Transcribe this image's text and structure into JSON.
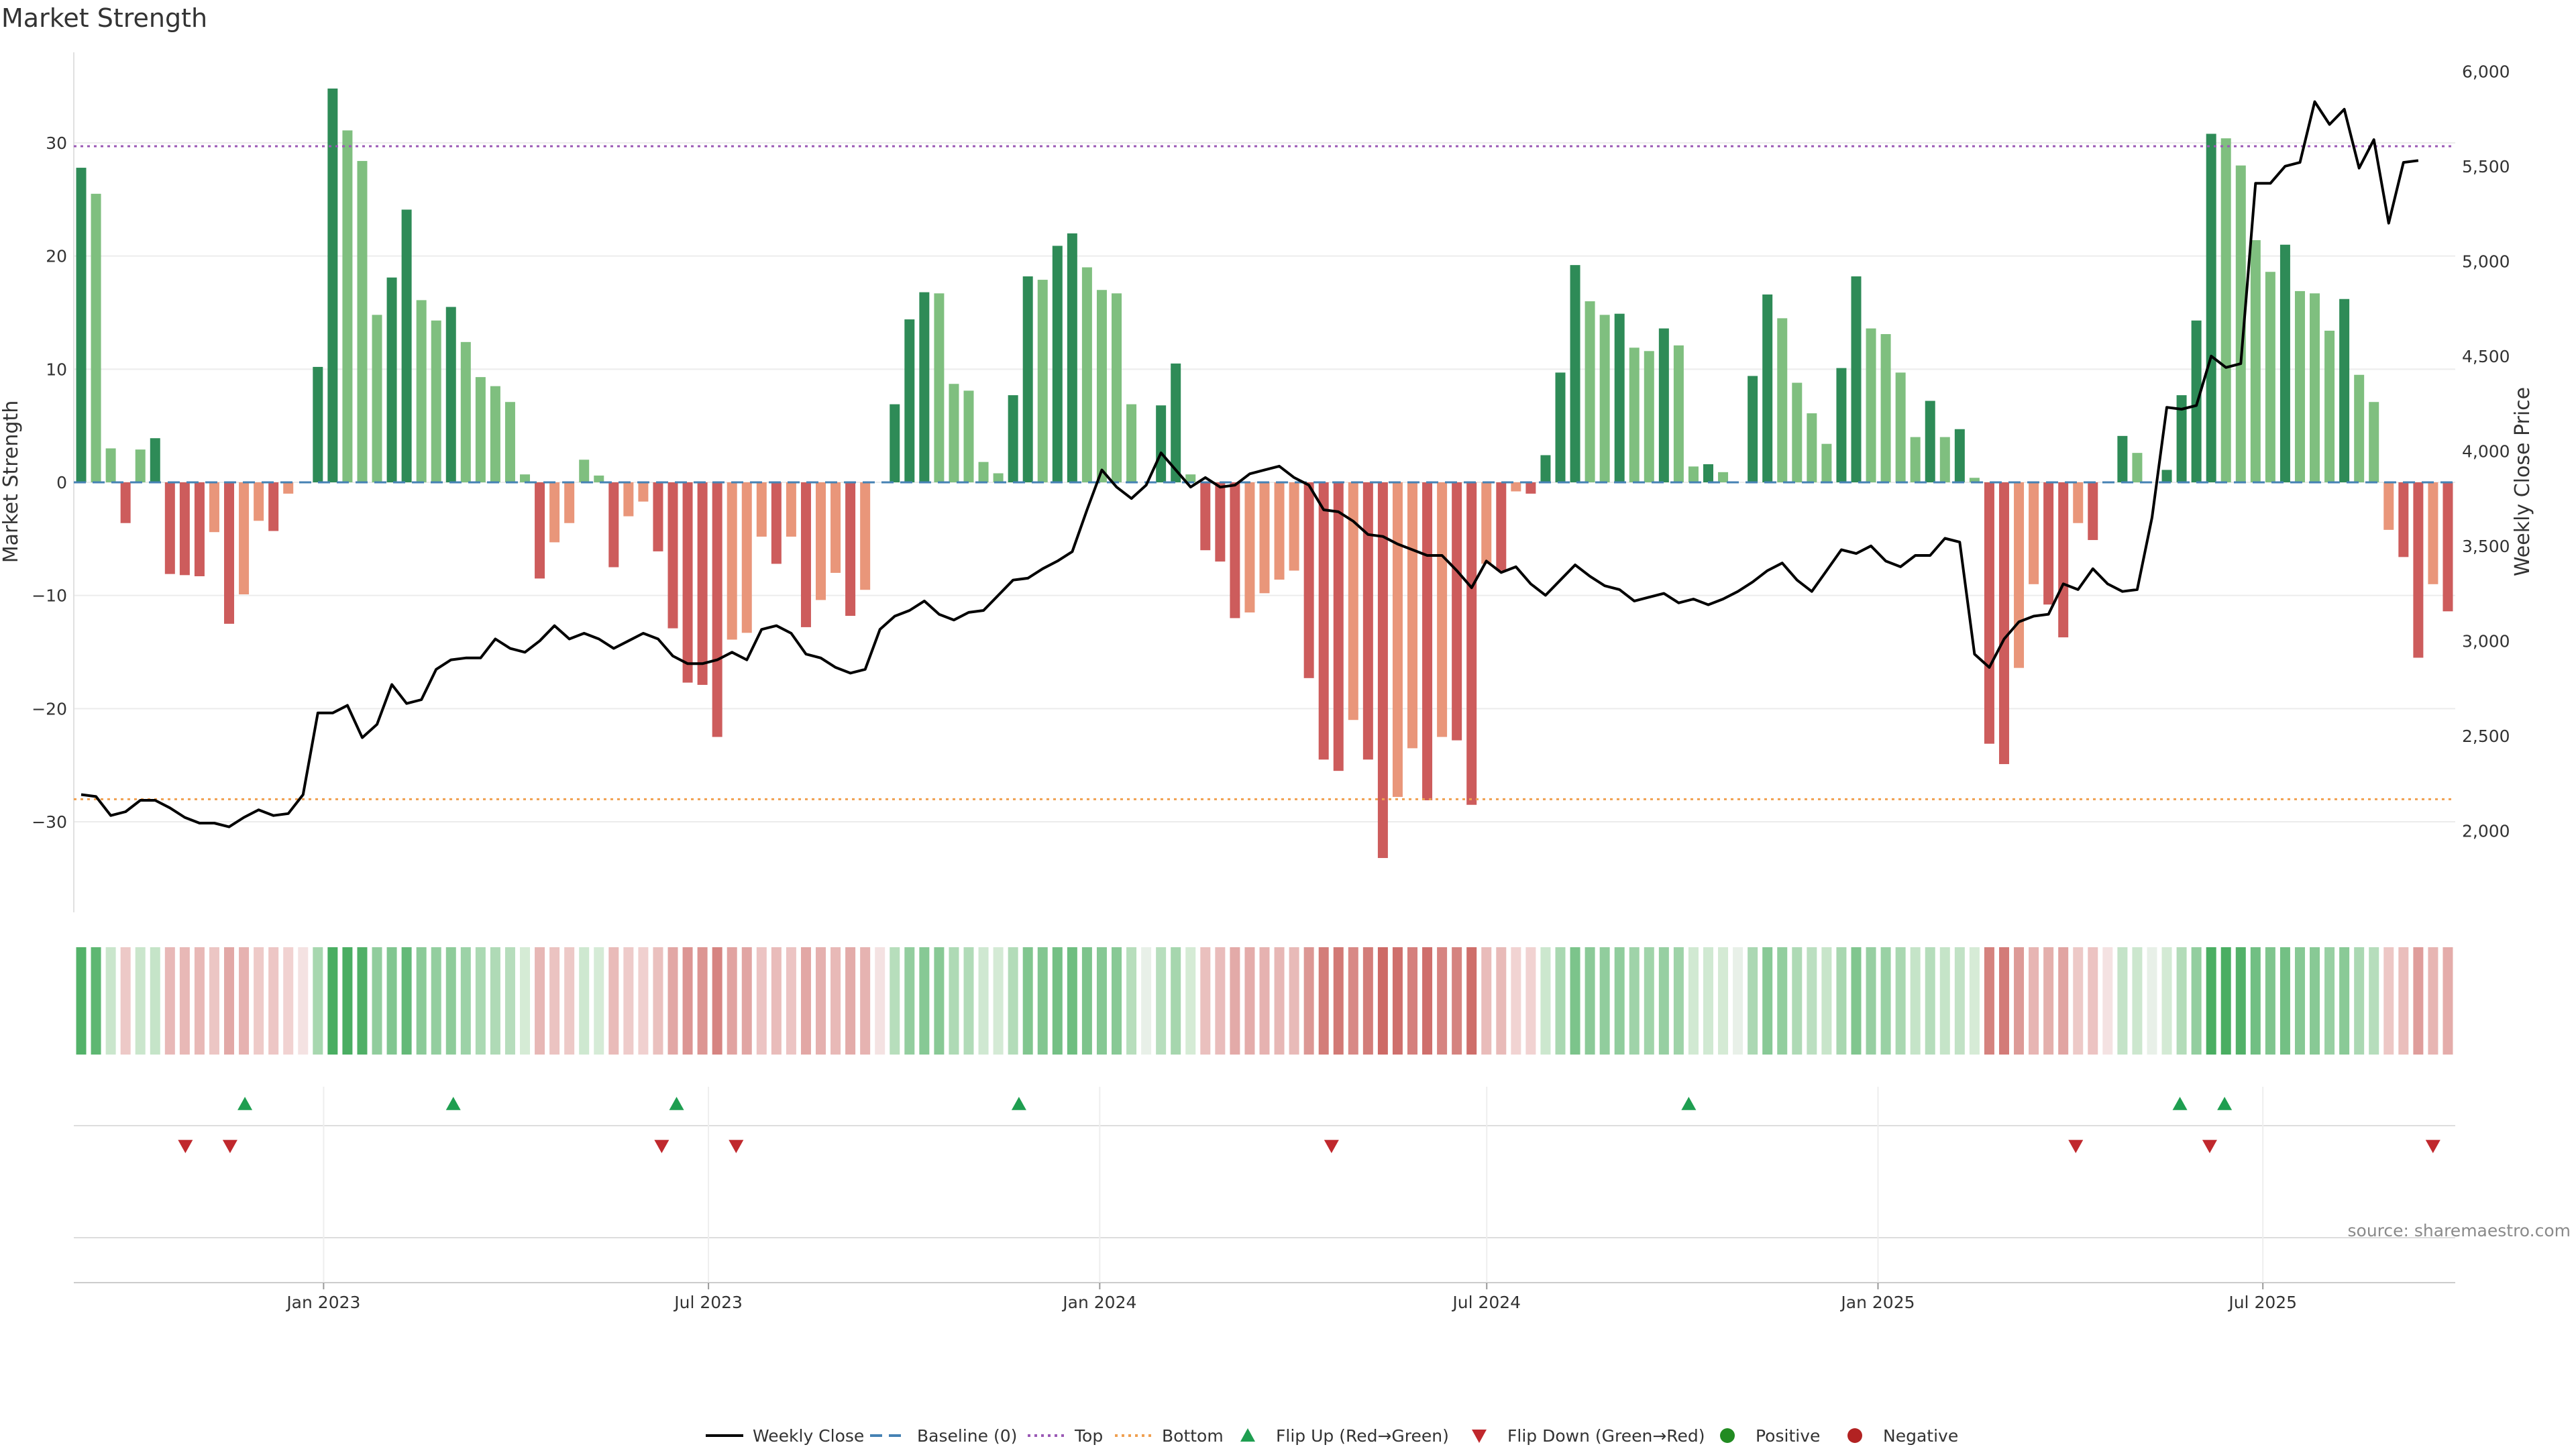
{
  "chart_data": {
    "type": "bar",
    "title": "Market Strength",
    "ylabel": "Market Strength",
    "y2label": "Weekly Close Price",
    "source": "source: sharemaestro.com",
    "ylim": [
      -38,
      38
    ],
    "y2lim": [
      1570,
      6100
    ],
    "yticks": [
      -30,
      -20,
      -10,
      0,
      10,
      20,
      30
    ],
    "y2ticks": [
      2000,
      2500,
      3000,
      3500,
      4000,
      4500,
      5000,
      5500,
      6000
    ],
    "y2tick_labels": [
      "2,000",
      "2,500",
      "3,000",
      "3,500",
      "4,000",
      "4,500",
      "5,000",
      "5,500",
      "6,000"
    ],
    "x_start": "2022-09-09",
    "x_end": "2025-09-26",
    "x_ticks": [
      {
        "label": "Jan 2023",
        "date": "2023-01-01"
      },
      {
        "label": "Jul 2023",
        "date": "2023-07-01"
      },
      {
        "label": "Jan 2024",
        "date": "2024-01-01"
      },
      {
        "label": "Jul 2024",
        "date": "2024-07-01"
      },
      {
        "label": "Jan 2025",
        "date": "2025-01-01"
      },
      {
        "label": "Jul 2025",
        "date": "2025-07-01"
      }
    ],
    "top_level": 29.7,
    "bottom_level": -28,
    "colors": {
      "strong_green": "#2e8b57",
      "light_green": "#7fbf7f",
      "strong_red": "#cd5c5c",
      "light_red": "#e9967a",
      "price_line": "#000000",
      "baseline": "#4682b4",
      "top": "#9b59b6",
      "bottom": "#f0a050",
      "flip_up": "#1e9e50",
      "flip_down": "#c0282d",
      "positive": "#228b22",
      "negative": "#b22222"
    },
    "series": [
      {
        "name": "Market Strength",
        "values": [
          27.8,
          25.5,
          3,
          -3.6,
          2.9,
          3.9,
          -8.1,
          -8.2,
          -8.3,
          -4.4,
          -12.5,
          -9.9,
          -3.4,
          -4.3,
          -1,
          0,
          10.2,
          34.8,
          31.1,
          28.4,
          14.8,
          18.1,
          24.1,
          16.1,
          14.3,
          15.5,
          12.4,
          9.3,
          8.5,
          7.1,
          0.7,
          -8.5,
          -5.3,
          -3.6,
          2,
          0.6,
          -7.5,
          -3,
          -1.7,
          -6.1,
          -12.9,
          -17.7,
          -17.9,
          -22.5,
          -13.9,
          -13.3,
          -4.8,
          -7.2,
          -4.8,
          -12.8,
          -10.4,
          -8,
          -11.8,
          -9.5,
          0,
          6.9,
          14.4,
          16.8,
          16.7,
          8.7,
          8.1,
          1.8,
          0.8,
          7.7,
          18.2,
          17.9,
          20.9,
          22,
          19,
          17,
          16.7,
          6.9,
          0,
          6.8,
          10.5,
          0.7,
          -6,
          -7,
          -12,
          -11.5,
          -9.8,
          -8.6,
          -7.8,
          -17.3,
          -24.5,
          -25.5,
          -21,
          -24.5,
          -33.2,
          -27.8,
          -23.5,
          -28.1,
          -22.5,
          -22.8,
          -28.5,
          -7.2,
          -7.8,
          -0.8,
          -1,
          2.4,
          9.7,
          19.2,
          16,
          14.8,
          14.9,
          11.9,
          11.6,
          13.6,
          12.1,
          1.4,
          1.6,
          0.9,
          0,
          9.4,
          16.6,
          14.5,
          8.8,
          6.1,
          3.4,
          10.1,
          18.2,
          13.6,
          13.1,
          9.7,
          4,
          7.2,
          4,
          4.7,
          0.4,
          -23.1,
          -24.9,
          -16.4,
          -9,
          -10.8,
          -13.7,
          -3.6,
          -5.1,
          0,
          4.1,
          2.6,
          0,
          1.1,
          7.7,
          14.3,
          30.8,
          30.4,
          28,
          21.4,
          18.6,
          21,
          16.9,
          16.7,
          13.4,
          16.2,
          9.5,
          7.1,
          -4.2,
          -6.6,
          -15.5,
          -9,
          -11.4
        ]
      },
      {
        "name": "Weekly Close",
        "values": [
          2190,
          2180,
          2080,
          2100,
          2160,
          2160,
          2120,
          2070,
          2040,
          2040,
          2020,
          2070,
          2110,
          2080,
          2090,
          2190,
          2620,
          2620,
          2660,
          2490,
          2560,
          2770,
          2670,
          2690,
          2850,
          2900,
          2910,
          2910,
          3010,
          2960,
          2940,
          3000,
          3080,
          3010,
          3040,
          3010,
          2960,
          3000,
          3040,
          3010,
          2920,
          2880,
          2880,
          2900,
          2940,
          2900,
          3060,
          3080,
          3040,
          2930,
          2910,
          2860,
          2830,
          2850,
          3060,
          3130,
          3160,
          3210,
          3140,
          3110,
          3150,
          3160,
          3240,
          3320,
          3330,
          3380,
          3420,
          3470,
          3690,
          3900,
          3810,
          3750,
          3820,
          3990,
          3900,
          3810,
          3860,
          3810,
          3820,
          3880,
          3900,
          3920,
          3860,
          3820,
          3690,
          3680,
          3630,
          3560,
          3550,
          3510,
          3480,
          3450,
          3450,
          3370,
          3280,
          3420,
          3360,
          3390,
          3300,
          3240,
          3320,
          3400,
          3340,
          3290,
          3270,
          3210,
          3230,
          3250,
          3200,
          3220,
          3190,
          3220,
          3260,
          3310,
          3370,
          3410,
          3320,
          3260,
          3370,
          3480,
          3460,
          3500,
          3420,
          3390,
          3450,
          3450,
          3540,
          3520,
          2930,
          2860,
          3010,
          3100,
          3130,
          3140,
          3300,
          3270,
          3380,
          3300,
          3260,
          3270,
          3650,
          4230,
          4220,
          4240,
          4500,
          4440,
          4460,
          5410,
          5410,
          5500,
          5520,
          5840,
          5720,
          5800,
          5490,
          5640,
          5200,
          5520,
          5530
        ]
      }
    ],
    "flips_up": [
      "2022-11-25",
      "2023-03-03",
      "2023-06-16",
      "2023-11-24",
      "2024-10-04",
      "2025-05-23",
      "2025-06-13"
    ],
    "flips_down": [
      "2022-10-28",
      "2022-11-18",
      "2023-06-09",
      "2023-07-14",
      "2024-04-19",
      "2025-04-04",
      "2025-06-06",
      "2025-09-19"
    ],
    "legend": [
      {
        "label": "Weekly Close",
        "symbol": "line"
      },
      {
        "label": "Baseline (0)",
        "symbol": "dash"
      },
      {
        "label": "Top",
        "symbol": "dot-top"
      },
      {
        "label": "Bottom",
        "symbol": "dot-bottom"
      },
      {
        "label": "Flip Up (Red→Green)",
        "symbol": "tri-up"
      },
      {
        "label": "Flip Down (Green→Red)",
        "symbol": "tri-down"
      },
      {
        "label": "Positive",
        "symbol": "dot-pos"
      },
      {
        "label": "Negative",
        "symbol": "dot-neg"
      }
    ]
  }
}
